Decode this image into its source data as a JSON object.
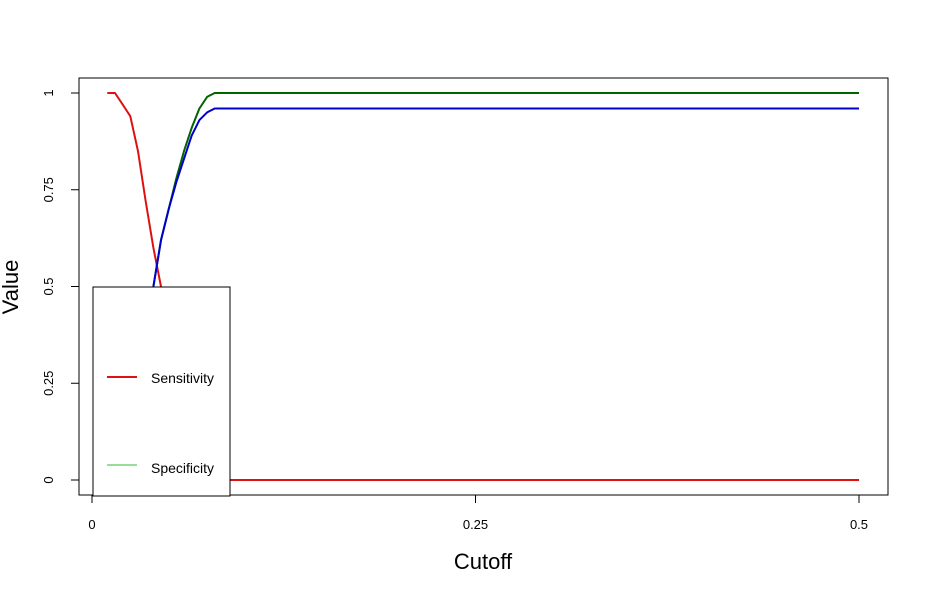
{
  "chart_data": {
    "type": "line",
    "title": "",
    "xlabel": "Cutoff",
    "ylabel": "Value",
    "xlim": [
      0,
      0.5
    ],
    "ylim": [
      0,
      1
    ],
    "x_ticks": [
      {
        "value": 0,
        "label": "0"
      },
      {
        "value": 0.25,
        "label": "0.25"
      },
      {
        "value": 0.5,
        "label": "0.5"
      }
    ],
    "y_ticks": [
      {
        "value": 0,
        "label": "0"
      },
      {
        "value": 0.25,
        "label": "0.25"
      },
      {
        "value": 0.5,
        "label": "0.5"
      },
      {
        "value": 0.75,
        "label": "0.75"
      },
      {
        "value": 1,
        "label": "1"
      }
    ],
    "grid": false,
    "legend": {
      "placement": "bottom-left",
      "entries": [
        {
          "label": "Sensitivity",
          "color": "#dd1111"
        },
        {
          "label": "Specificity",
          "color": "#99dd99"
        }
      ]
    },
    "series": [
      {
        "name": "Sensitivity",
        "color": "#dd1111",
        "x": [
          0.01,
          0.015,
          0.02,
          0.025,
          0.03,
          0.035,
          0.04,
          0.045,
          0.05,
          0.055,
          0.06,
          0.065,
          0.07,
          0.08,
          0.09,
          0.1,
          0.5
        ],
        "y": [
          1,
          1,
          0.97,
          0.94,
          0.85,
          0.72,
          0.6,
          0.5,
          0.38,
          0.25,
          0.12,
          0.05,
          0.02,
          0,
          0,
          0,
          0
        ]
      },
      {
        "name": "",
        "color": "#006400",
        "x": [
          0.04,
          0.045,
          0.05,
          0.055,
          0.06,
          0.065,
          0.07,
          0.075,
          0.08,
          0.085,
          0.09,
          0.5
        ],
        "y": [
          0.5,
          0.62,
          0.7,
          0.78,
          0.85,
          0.91,
          0.96,
          0.99,
          1,
          1,
          1,
          1
        ]
      },
      {
        "name": "",
        "color": "#0000cc",
        "x": [
          0.04,
          0.045,
          0.05,
          0.055,
          0.06,
          0.065,
          0.07,
          0.075,
          0.08,
          0.085,
          0.09,
          0.5
        ],
        "y": [
          0.5,
          0.62,
          0.7,
          0.77,
          0.83,
          0.89,
          0.93,
          0.95,
          0.96,
          0.96,
          0.96,
          0.96
        ]
      }
    ]
  }
}
